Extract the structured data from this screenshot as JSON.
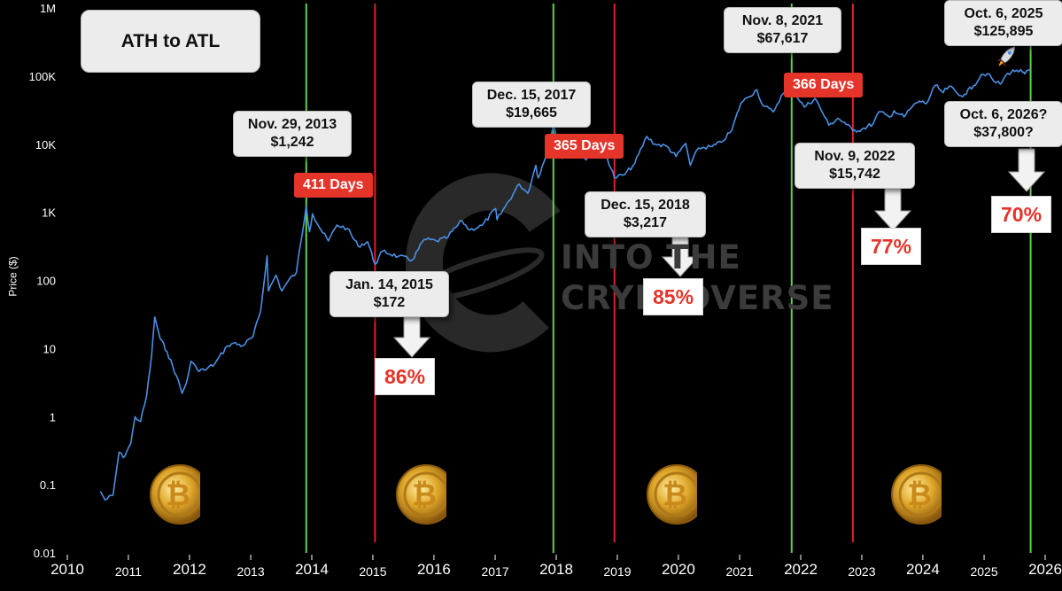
{
  "chart_data": {
    "type": "line",
    "title": "ATH to ATL",
    "ylabel": "Price ($)",
    "yscale": "log",
    "ylim": [
      0.01,
      1000000
    ],
    "ytick_labels": [
      "1M",
      "100K",
      "10K",
      "1K",
      "100",
      "10",
      "1",
      "0.1",
      "0.01"
    ],
    "xlim": [
      "2010-01-01",
      "2026-01-01"
    ],
    "xtick_labels": [
      "2010",
      "2011",
      "2012",
      "2013",
      "2014",
      "2015",
      "2016",
      "2017",
      "2018",
      "2019",
      "2020",
      "2021",
      "2022",
      "2023",
      "2024",
      "2025",
      "2026"
    ],
    "grid": false,
    "series": [
      {
        "color": "#4a90e2",
        "points": [
          [
            "2010-07-18",
            0.08
          ],
          [
            "2010-08-15",
            0.06
          ],
          [
            "2010-10-01",
            0.07
          ],
          [
            "2010-11-06",
            0.3
          ],
          [
            "2010-12-01",
            0.25
          ],
          [
            "2011-01-15",
            0.4
          ],
          [
            "2011-02-10",
            1.0
          ],
          [
            "2011-03-15",
            0.85
          ],
          [
            "2011-04-20",
            2.0
          ],
          [
            "2011-05-20",
            8
          ],
          [
            "2011-06-08",
            29
          ],
          [
            "2011-07-10",
            14
          ],
          [
            "2011-08-20",
            9
          ],
          [
            "2011-10-15",
            4
          ],
          [
            "2011-11-18",
            2.2
          ],
          [
            "2011-12-15",
            3.2
          ],
          [
            "2012-01-10",
            6.5
          ],
          [
            "2012-02-15",
            5
          ],
          [
            "2012-04-01",
            4.8
          ],
          [
            "2012-06-01",
            6
          ],
          [
            "2012-08-15",
            11
          ],
          [
            "2012-09-20",
            12
          ],
          [
            "2012-11-15",
            11
          ],
          [
            "2013-01-15",
            15
          ],
          [
            "2013-03-01",
            35
          ],
          [
            "2013-04-09",
            230
          ],
          [
            "2013-04-17",
            70
          ],
          [
            "2013-06-01",
            120
          ],
          [
            "2013-07-06",
            70
          ],
          [
            "2013-08-15",
            100
          ],
          [
            "2013-10-01",
            130
          ],
          [
            "2013-11-29",
            1242
          ],
          [
            "2013-12-18",
            520
          ],
          [
            "2014-01-05",
            950
          ],
          [
            "2014-02-25",
            550
          ],
          [
            "2014-04-10",
            380
          ],
          [
            "2014-06-01",
            650
          ],
          [
            "2014-08-01",
            580
          ],
          [
            "2014-10-05",
            320
          ],
          [
            "2014-12-01",
            370
          ],
          [
            "2015-01-14",
            172
          ],
          [
            "2015-03-01",
            270
          ],
          [
            "2015-06-01",
            225
          ],
          [
            "2015-08-25",
            200
          ],
          [
            "2015-11-04",
            400
          ],
          [
            "2016-01-15",
            380
          ],
          [
            "2016-03-15",
            415
          ],
          [
            "2016-06-17",
            750
          ],
          [
            "2016-08-01",
            550
          ],
          [
            "2016-10-15",
            640
          ],
          [
            "2017-01-04",
            1130
          ],
          [
            "2017-01-12",
            780
          ],
          [
            "2017-03-01",
            1200
          ],
          [
            "2017-05-25",
            2600
          ],
          [
            "2017-07-15",
            1900
          ],
          [
            "2017-09-01",
            4900
          ],
          [
            "2017-09-15",
            3200
          ],
          [
            "2017-11-01",
            6700
          ],
          [
            "2017-12-15",
            19665
          ],
          [
            "2018-02-06",
            6200
          ],
          [
            "2018-03-05",
            11400
          ],
          [
            "2018-04-06",
            6600
          ],
          [
            "2018-05-05",
            9800
          ],
          [
            "2018-06-29",
            5900
          ],
          [
            "2018-07-25",
            8300
          ],
          [
            "2018-09-15",
            6500
          ],
          [
            "2018-11-01",
            6400
          ],
          [
            "2018-12-15",
            3217
          ],
          [
            "2019-02-15",
            3600
          ],
          [
            "2019-04-15",
            5200
          ],
          [
            "2019-06-26",
            13000
          ],
          [
            "2019-08-15",
            10000
          ],
          [
            "2019-10-25",
            9300
          ],
          [
            "2019-12-18",
            6600
          ],
          [
            "2020-02-14",
            10300
          ],
          [
            "2020-03-12",
            4900
          ],
          [
            "2020-05-01",
            8800
          ],
          [
            "2020-07-20",
            9200
          ],
          [
            "2020-09-15",
            10700
          ],
          [
            "2020-11-15",
            16000
          ],
          [
            "2021-01-08",
            40000
          ],
          [
            "2021-02-15",
            48000
          ],
          [
            "2021-04-14",
            63000
          ],
          [
            "2021-05-20",
            37000
          ],
          [
            "2021-07-20",
            29800
          ],
          [
            "2021-09-06",
            51000
          ],
          [
            "2021-11-08",
            67617
          ],
          [
            "2022-01-22",
            35000
          ],
          [
            "2022-03-28",
            47000
          ],
          [
            "2022-05-12",
            29000
          ],
          [
            "2022-06-18",
            19000
          ],
          [
            "2022-08-12",
            24000
          ],
          [
            "2022-10-01",
            19500
          ],
          [
            "2022-11-09",
            15742
          ],
          [
            "2023-01-01",
            16600
          ],
          [
            "2023-03-10",
            20000
          ],
          [
            "2023-04-14",
            30000
          ],
          [
            "2023-06-15",
            25000
          ],
          [
            "2023-07-13",
            31000
          ],
          [
            "2023-09-11",
            25200
          ],
          [
            "2023-10-25",
            34500
          ],
          [
            "2023-12-10",
            43000
          ],
          [
            "2024-01-23",
            39500
          ],
          [
            "2024-03-14",
            73000
          ],
          [
            "2024-05-01",
            57000
          ],
          [
            "2024-06-07",
            71000
          ],
          [
            "2024-08-05",
            52000
          ],
          [
            "2024-09-06",
            54000
          ],
          [
            "2024-10-29",
            72000
          ],
          [
            "2024-12-17",
            106000
          ],
          [
            "2025-01-20",
            108000
          ],
          [
            "2025-02-28",
            84000
          ],
          [
            "2025-04-08",
            76000
          ],
          [
            "2025-05-22",
            110000
          ],
          [
            "2025-07-14",
            122000
          ],
          [
            "2025-08-20",
            113000
          ],
          [
            "2025-09-01",
            108000
          ],
          [
            "2025-10-06",
            125895
          ]
        ]
      }
    ],
    "green_lines": [
      "2013-11-29",
      "2017-12-15",
      "2021-11-08",
      "2025-10-06"
    ],
    "red_lines": [
      "2015-01-14",
      "2018-12-15",
      "2022-11-09"
    ],
    "annotations": {
      "ath_2013": {
        "date": "Nov. 29, 2013",
        "price": "$1,242"
      },
      "atl_2015": {
        "date": "Jan. 14, 2015",
        "price": "$172"
      },
      "ath_2017": {
        "date": "Dec. 15, 2017",
        "price": "$19,665"
      },
      "atl_2018": {
        "date": "Dec. 15, 2018",
        "price": "$3,217"
      },
      "ath_2021": {
        "date": "Nov. 8, 2021",
        "price": "$67,617"
      },
      "atl_2022": {
        "date": "Nov. 9, 2022",
        "price": "$15,742"
      },
      "ath_2025": {
        "date": "Oct. 6, 2025",
        "price": "$125,895"
      },
      "atl_2026": {
        "date": "Oct. 6, 2026?",
        "price": "$37,800?"
      }
    },
    "day_counts": {
      "c1": "411 Days",
      "c2": "365 Days",
      "c3": "366 Days"
    },
    "drawdowns": {
      "c1": "86%",
      "c2": "85%",
      "c3": "77%",
      "c4": "70%"
    },
    "colors": {
      "background": "#000000",
      "line": "#4a90e2",
      "ath_line": "#5fd34a",
      "atl_line": "#e02020",
      "badge": "#e5342a"
    }
  },
  "watermark": [
    "INTO THE",
    "CRYPTOVERSE"
  ]
}
